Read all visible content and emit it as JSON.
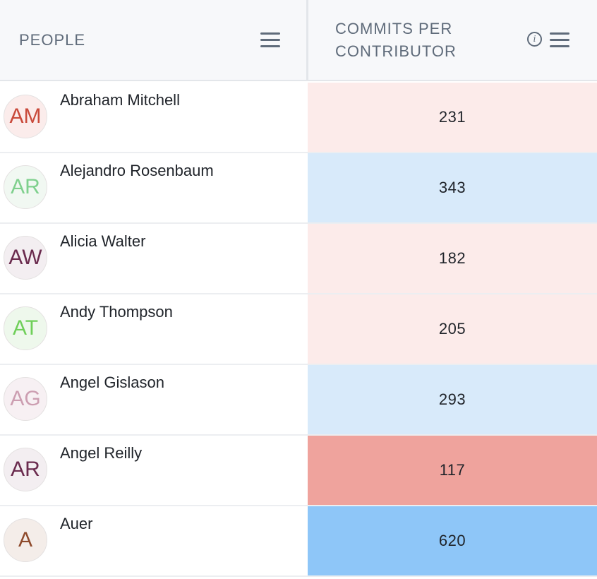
{
  "columns": {
    "people": {
      "title": "PEOPLE",
      "menu_icon": "hamburger-menu-icon"
    },
    "commits": {
      "title": "COMMITS PER CONTRIBUTOR",
      "info_icon": "info-icon",
      "info_glyph": "i",
      "menu_icon": "hamburger-menu-icon"
    }
  },
  "rows": [
    {
      "initials": "AM",
      "name": "Abraham Mitchell",
      "value": "231",
      "avatar_color": "#c9493a",
      "avatar_bg": "#fbeceb",
      "cell_color": "#fcebea"
    },
    {
      "initials": "AR",
      "name": "Alejandro Rosenbaum",
      "value": "343",
      "avatar_color": "#7fd08d",
      "avatar_bg": "#f1f8f2",
      "cell_color": "#d8eafa"
    },
    {
      "initials": "AW",
      "name": "Alicia Walter",
      "value": "182",
      "avatar_color": "#6a2b4e",
      "avatar_bg": "#f3eef1",
      "cell_color": "#fcebea"
    },
    {
      "initials": "AT",
      "name": "Andy Thompson",
      "value": "205",
      "avatar_color": "#6fcf59",
      "avatar_bg": "#eef8ec",
      "cell_color": "#fcebea"
    },
    {
      "initials": "AG",
      "name": "Angel Gislason",
      "value": "293",
      "avatar_color": "#cc9eb1",
      "avatar_bg": "#f7f0f3",
      "cell_color": "#d8eafa"
    },
    {
      "initials": "AR",
      "name": "Angel Reilly",
      "value": "117",
      "avatar_color": "#6a2b4e",
      "avatar_bg": "#f3eef1",
      "cell_color": "#efa39d"
    },
    {
      "initials": "A",
      "name": "Auer",
      "value": "620",
      "avatar_color": "#8e4a2b",
      "avatar_bg": "#f4ede9",
      "cell_color": "#8ec6f8"
    }
  ]
}
